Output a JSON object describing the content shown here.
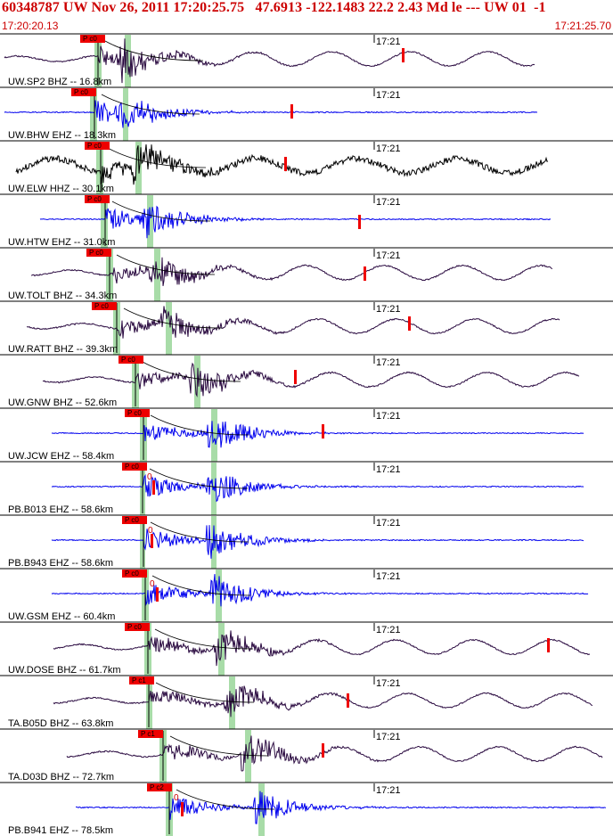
{
  "header": {
    "title": "60348787 UW Nov 26, 2011 17:20:25.75   47.6913 -122.1483 22.2 2.43 Md le --- UW 01  -1",
    "time_start": "17:20:20.13",
    "time_end": "17:21:25.70"
  },
  "colors": {
    "title": "#cc0000",
    "pick_flag": "#ee0000",
    "velocity_window": "#a8dca8",
    "trace_dark": "#2a0a40",
    "trace_black": "#000000",
    "trace_blue": "#0000ee"
  },
  "chart_data": {
    "type": "line",
    "title": "60348787 UW Nov 26, 2011 17:20:25.75   47.6913 -122.1483 22.2 2.43 Md le --- UW 01  -1",
    "xlabel": "",
    "ylabel": "",
    "x_time_range": [
      "17:20:20.13",
      "17:21:25.70"
    ],
    "minute_tick_label": "17:21",
    "series": [
      {
        "name": "UW SP2 BHZ -- 16.8km",
        "label": "UW.SP2 BHZ -- 16.8km",
        "pick_label": "P c0",
        "color": "#2a0a40",
        "zero_marker": ""
      },
      {
        "name": "UW BHW EHZ -- 18.3km",
        "label": "UW.BHW EHZ -- 18.3km",
        "pick_label": "P c0",
        "color": "#0000ee",
        "zero_marker": ""
      },
      {
        "name": "UW ELW HHZ -- 30.1km",
        "label": "UW.ELW HHZ -- 30.1km",
        "pick_label": "P c0",
        "color": "#000000",
        "zero_marker": ""
      },
      {
        "name": "UW HTW EHZ -- 31.0km",
        "label": "UW.HTW EHZ -- 31.0km",
        "pick_label": "P c0",
        "color": "#0000ee",
        "zero_marker": ""
      },
      {
        "name": "UW TOLT BHZ -- 34.3km",
        "label": "UW.TOLT BHZ -- 34.3km",
        "pick_label": "P c0",
        "color": "#2a0a40",
        "zero_marker": ""
      },
      {
        "name": "UW RATT BHZ -- 39.3km",
        "label": "UW.RATT BHZ -- 39.3km",
        "pick_label": "P c0",
        "color": "#2a0a40",
        "zero_marker": ""
      },
      {
        "name": "UW GNW BHZ -- 52.6km",
        "label": "UW.GNW BHZ -- 52.6km",
        "pick_label": "P c0",
        "color": "#2a0a40",
        "zero_marker": ""
      },
      {
        "name": "UW JCW EHZ -- 58.4km",
        "label": "UW.JCW EHZ -- 58.4km",
        "pick_label": "P c0",
        "color": "#0000ee",
        "zero_marker": ""
      },
      {
        "name": "PB B013 EHZ -- 58.6km",
        "label": "PB.B013 EHZ -- 58.6km",
        "pick_label": "P c0",
        "color": "#0000ee",
        "zero_marker": "0"
      },
      {
        "name": "PB B943 EHZ -- 58.6km",
        "label": "PB.B943 EHZ -- 58.6km",
        "pick_label": "P c0",
        "color": "#0000ee",
        "zero_marker": "0"
      },
      {
        "name": "UW GSM EHZ -- 60.4km",
        "label": "UW.GSM EHZ -- 60.4km",
        "pick_label": "P c0",
        "color": "#0000ee",
        "zero_marker": "0"
      },
      {
        "name": "UW DOSE BHZ -- 61.7km",
        "label": "UW.DOSE BHZ -- 61.7km",
        "pick_label": "P c0",
        "color": "#2a0a40",
        "zero_marker": ""
      },
      {
        "name": "TA B05D BHZ -- 63.8km",
        "label": "TA.B05D BHZ -- 63.8km",
        "pick_label": "P c1",
        "color": "#2a0a40",
        "zero_marker": ""
      },
      {
        "name": "TA D03D BHZ -- 72.7km",
        "label": "TA.D03D BHZ -- 72.7km",
        "pick_label": "P c1",
        "color": "#2a0a40",
        "zero_marker": ""
      },
      {
        "name": "PB B941 EHZ -- 78.5km",
        "label": "PB.B941 EHZ -- 78.5km",
        "pick_label": "P c2",
        "color": "#0000ee",
        "zero_marker": "0"
      }
    ]
  }
}
